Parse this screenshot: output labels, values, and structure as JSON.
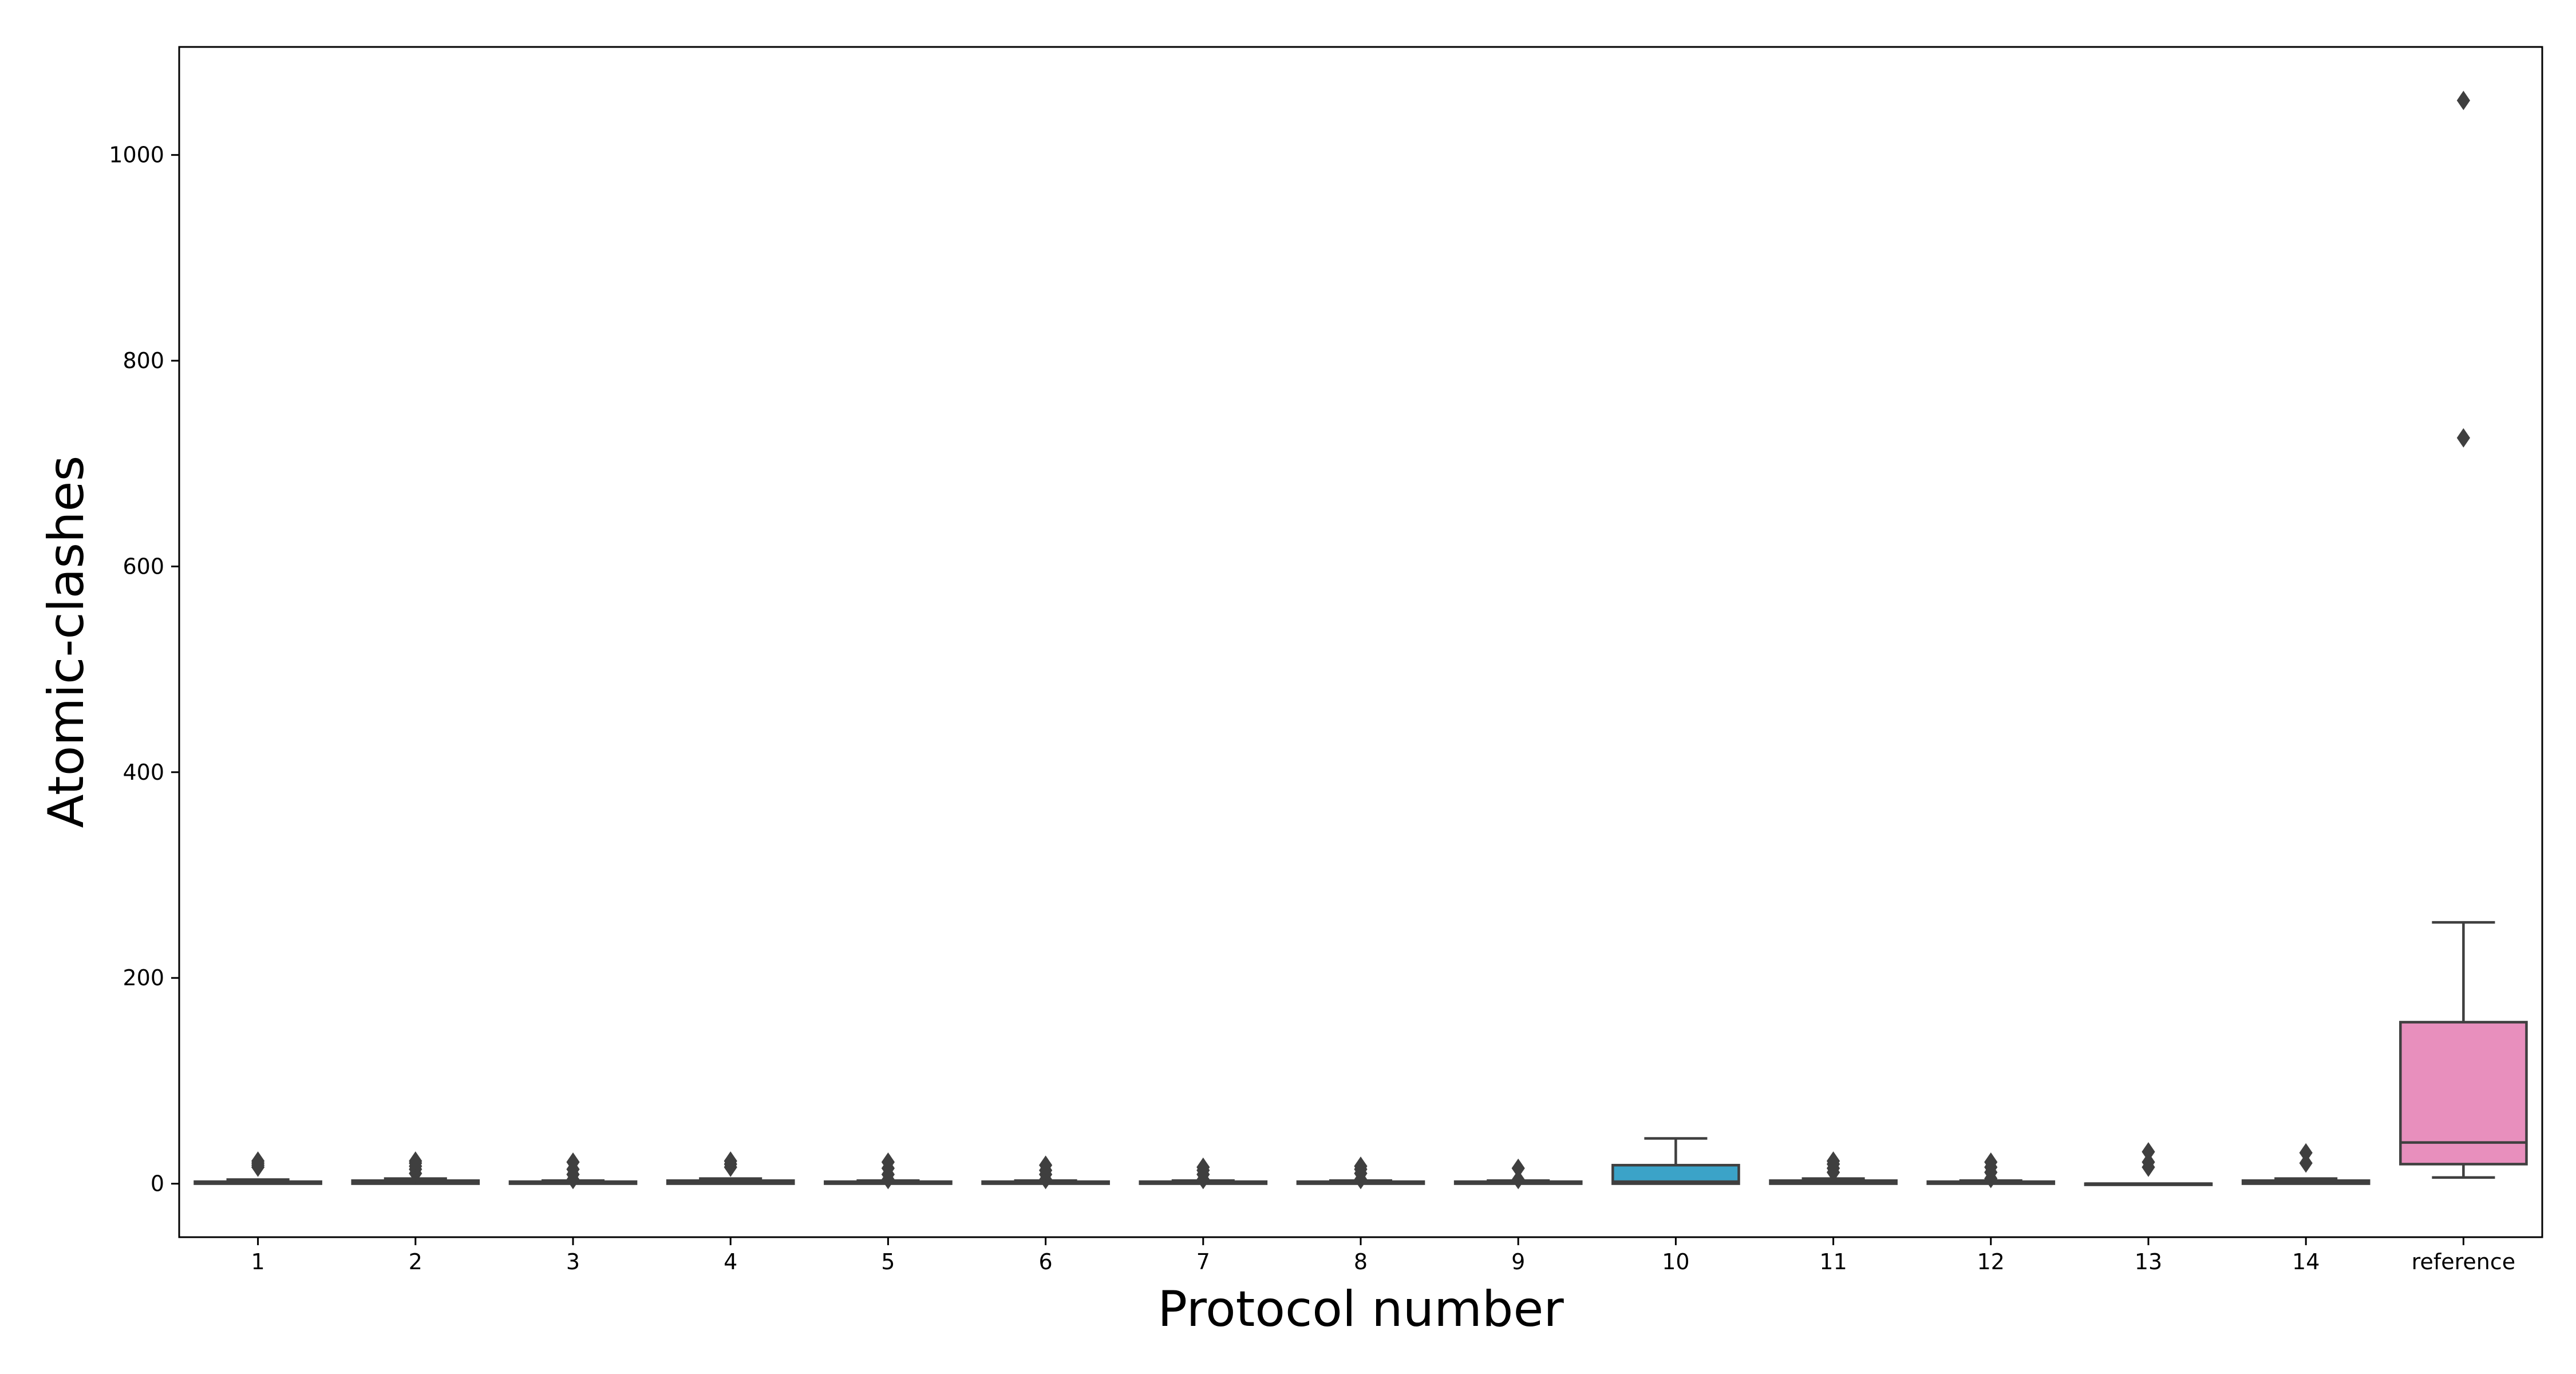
{
  "chart_data": {
    "type": "box",
    "xlabel": "Protocol number",
    "ylabel": "Atomic-clashes",
    "ylim": [
      -52,
      1105
    ],
    "yticks": [
      0,
      200,
      400,
      600,
      800,
      1000
    ],
    "grid": false,
    "categories": [
      "1",
      "2",
      "3",
      "4",
      "5",
      "6",
      "7",
      "8",
      "9",
      "10",
      "11",
      "12",
      "13",
      "14",
      "reference"
    ],
    "boxes": [
      {
        "category": "1",
        "q1": 0,
        "median": 1,
        "q3": 2,
        "whisker_low": 0,
        "whisker_high": 4,
        "outliers": [
          16,
          18,
          20,
          22
        ],
        "color": "#e1812c"
      },
      {
        "category": "2",
        "q1": 0,
        "median": 1,
        "q3": 3,
        "whisker_low": 0,
        "whisker_high": 5,
        "outliers": [
          10,
          14,
          17,
          20,
          22
        ],
        "color": "#3a923a"
      },
      {
        "category": "3",
        "q1": 0,
        "median": 1,
        "q3": 2,
        "whisker_low": 0,
        "whisker_high": 3,
        "outliers": [
          4,
          9,
          14,
          21
        ],
        "color": "#c03d3e"
      },
      {
        "category": "4",
        "q1": 0,
        "median": 1,
        "q3": 3,
        "whisker_low": 0,
        "whisker_high": 5,
        "outliers": [
          16,
          19,
          22
        ],
        "color": "#9372b2"
      },
      {
        "category": "5",
        "q1": 0,
        "median": 1,
        "q3": 2,
        "whisker_low": 0,
        "whisker_high": 3,
        "outliers": [
          4,
          9,
          15,
          21
        ],
        "color": "#845b53"
      },
      {
        "category": "6",
        "q1": 0,
        "median": 1,
        "q3": 2,
        "whisker_low": 0,
        "whisker_high": 3,
        "outliers": [
          4,
          9,
          13,
          18
        ],
        "color": "#d684bd"
      },
      {
        "category": "7",
        "q1": 0,
        "median": 1,
        "q3": 2,
        "whisker_low": 0,
        "whisker_high": 3,
        "outliers": [
          4,
          9,
          13,
          16
        ],
        "color": "#7f7f7f"
      },
      {
        "category": "8",
        "q1": 0,
        "median": 1,
        "q3": 2,
        "whisker_low": 0,
        "whisker_high": 3,
        "outliers": [
          4,
          10,
          14,
          17
        ],
        "color": "#a9aa35"
      },
      {
        "category": "9",
        "q1": 0,
        "median": 1,
        "q3": 2,
        "whisker_low": 0,
        "whisker_high": 3,
        "outliers": [
          4,
          15
        ],
        "color": "#2ea8b3"
      },
      {
        "category": "10",
        "q1": 0,
        "median": 2,
        "q3": 18,
        "whisker_low": 0,
        "whisker_high": 44,
        "outliers": [],
        "color": "#3ba3c8"
      },
      {
        "category": "11",
        "q1": 0,
        "median": 1,
        "q3": 3,
        "whisker_low": 0,
        "whisker_high": 5,
        "outliers": [
          11,
          15,
          19,
          22
        ],
        "color": "#e1812c"
      },
      {
        "category": "12",
        "q1": 0,
        "median": 1,
        "q3": 2,
        "whisker_low": 0,
        "whisker_high": 3,
        "outliers": [
          5,
          11,
          16,
          21
        ],
        "color": "#3a923a"
      },
      {
        "category": "13",
        "q1": 0,
        "median": 0,
        "q3": 0,
        "whisker_low": 0,
        "whisker_high": 0,
        "outliers": [
          16,
          21,
          31
        ],
        "color": "#c03d3e"
      },
      {
        "category": "14",
        "q1": 0,
        "median": 1,
        "q3": 3,
        "whisker_low": 0,
        "whisker_high": 5,
        "outliers": [
          20,
          30
        ],
        "color": "#9372b2"
      },
      {
        "category": "reference",
        "q1": 19,
        "median": 40,
        "q3": 157,
        "whisker_low": 6,
        "whisker_high": 254,
        "outliers": [
          725,
          1053
        ],
        "color": "#e88fbd"
      }
    ]
  }
}
